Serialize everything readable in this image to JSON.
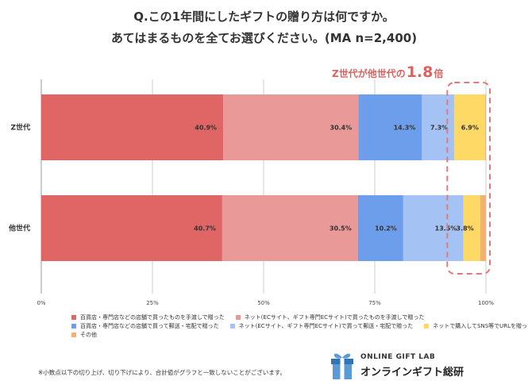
{
  "title_line1": "Q.この1年間にしたギフトの贈り方は何ですか。",
  "title_line2": "あてはまるものを全てお選びください。(MA n=2,400)",
  "callout": {
    "prefix": "Z世代が他世代の",
    "number": "1.8",
    "suffix": "倍"
  },
  "footnote": "※小数点以下の切り上げ、切り下げにより、合計値がグラフと一致しないことがございます。",
  "logo": {
    "line1": "ONLINE GIFT LAB",
    "line2": "オンラインギフト総研"
  },
  "chart_data": {
    "type": "bar",
    "orientation": "horizontal",
    "stacked": true,
    "categories": [
      "Z世代",
      "他世代"
    ],
    "xlim": [
      0,
      100
    ],
    "xticks": [
      "0%",
      "25%",
      "50%",
      "75%",
      "100%"
    ],
    "series": [
      {
        "name": "百貨店・専門店などの店舗で買ったものを手渡しで贈った",
        "color": "#e06666",
        "values": [
          40.9,
          40.7
        ],
        "labels": [
          "40.9%",
          "40.7%"
        ]
      },
      {
        "name": "ネット(ECサイト、ギフト専門ECサイト)で買ったものを手渡しで贈った",
        "color": "#ea9999",
        "values": [
          30.4,
          30.5
        ],
        "labels": [
          "30.4%",
          "30.5%"
        ]
      },
      {
        "name": "百貨店・専門店などの店舗で買って郵送・宅配で贈った",
        "color": "#6d9eeb",
        "values": [
          14.3,
          10.2
        ],
        "labels": [
          "14.3%",
          "10.2%"
        ]
      },
      {
        "name": "ネット(ECサイト、ギフト専門ECサイト)で買って郵送・宅配で贈った",
        "color": "#a4c2f4",
        "values": [
          7.3,
          13.5
        ],
        "labels": [
          "7.3%",
          "13.5%"
        ]
      },
      {
        "name": "ネットで購入してSNS等でURLを贈った",
        "color": "#ffd966",
        "values": [
          6.9,
          3.8
        ],
        "labels": [
          "6.9%",
          "3.8%"
        ]
      },
      {
        "name": "その他",
        "color": "#f6b26b",
        "values": [
          0.2,
          1.3
        ],
        "labels": [
          "",
          ""
        ]
      }
    ],
    "legend_position": "bottom"
  }
}
